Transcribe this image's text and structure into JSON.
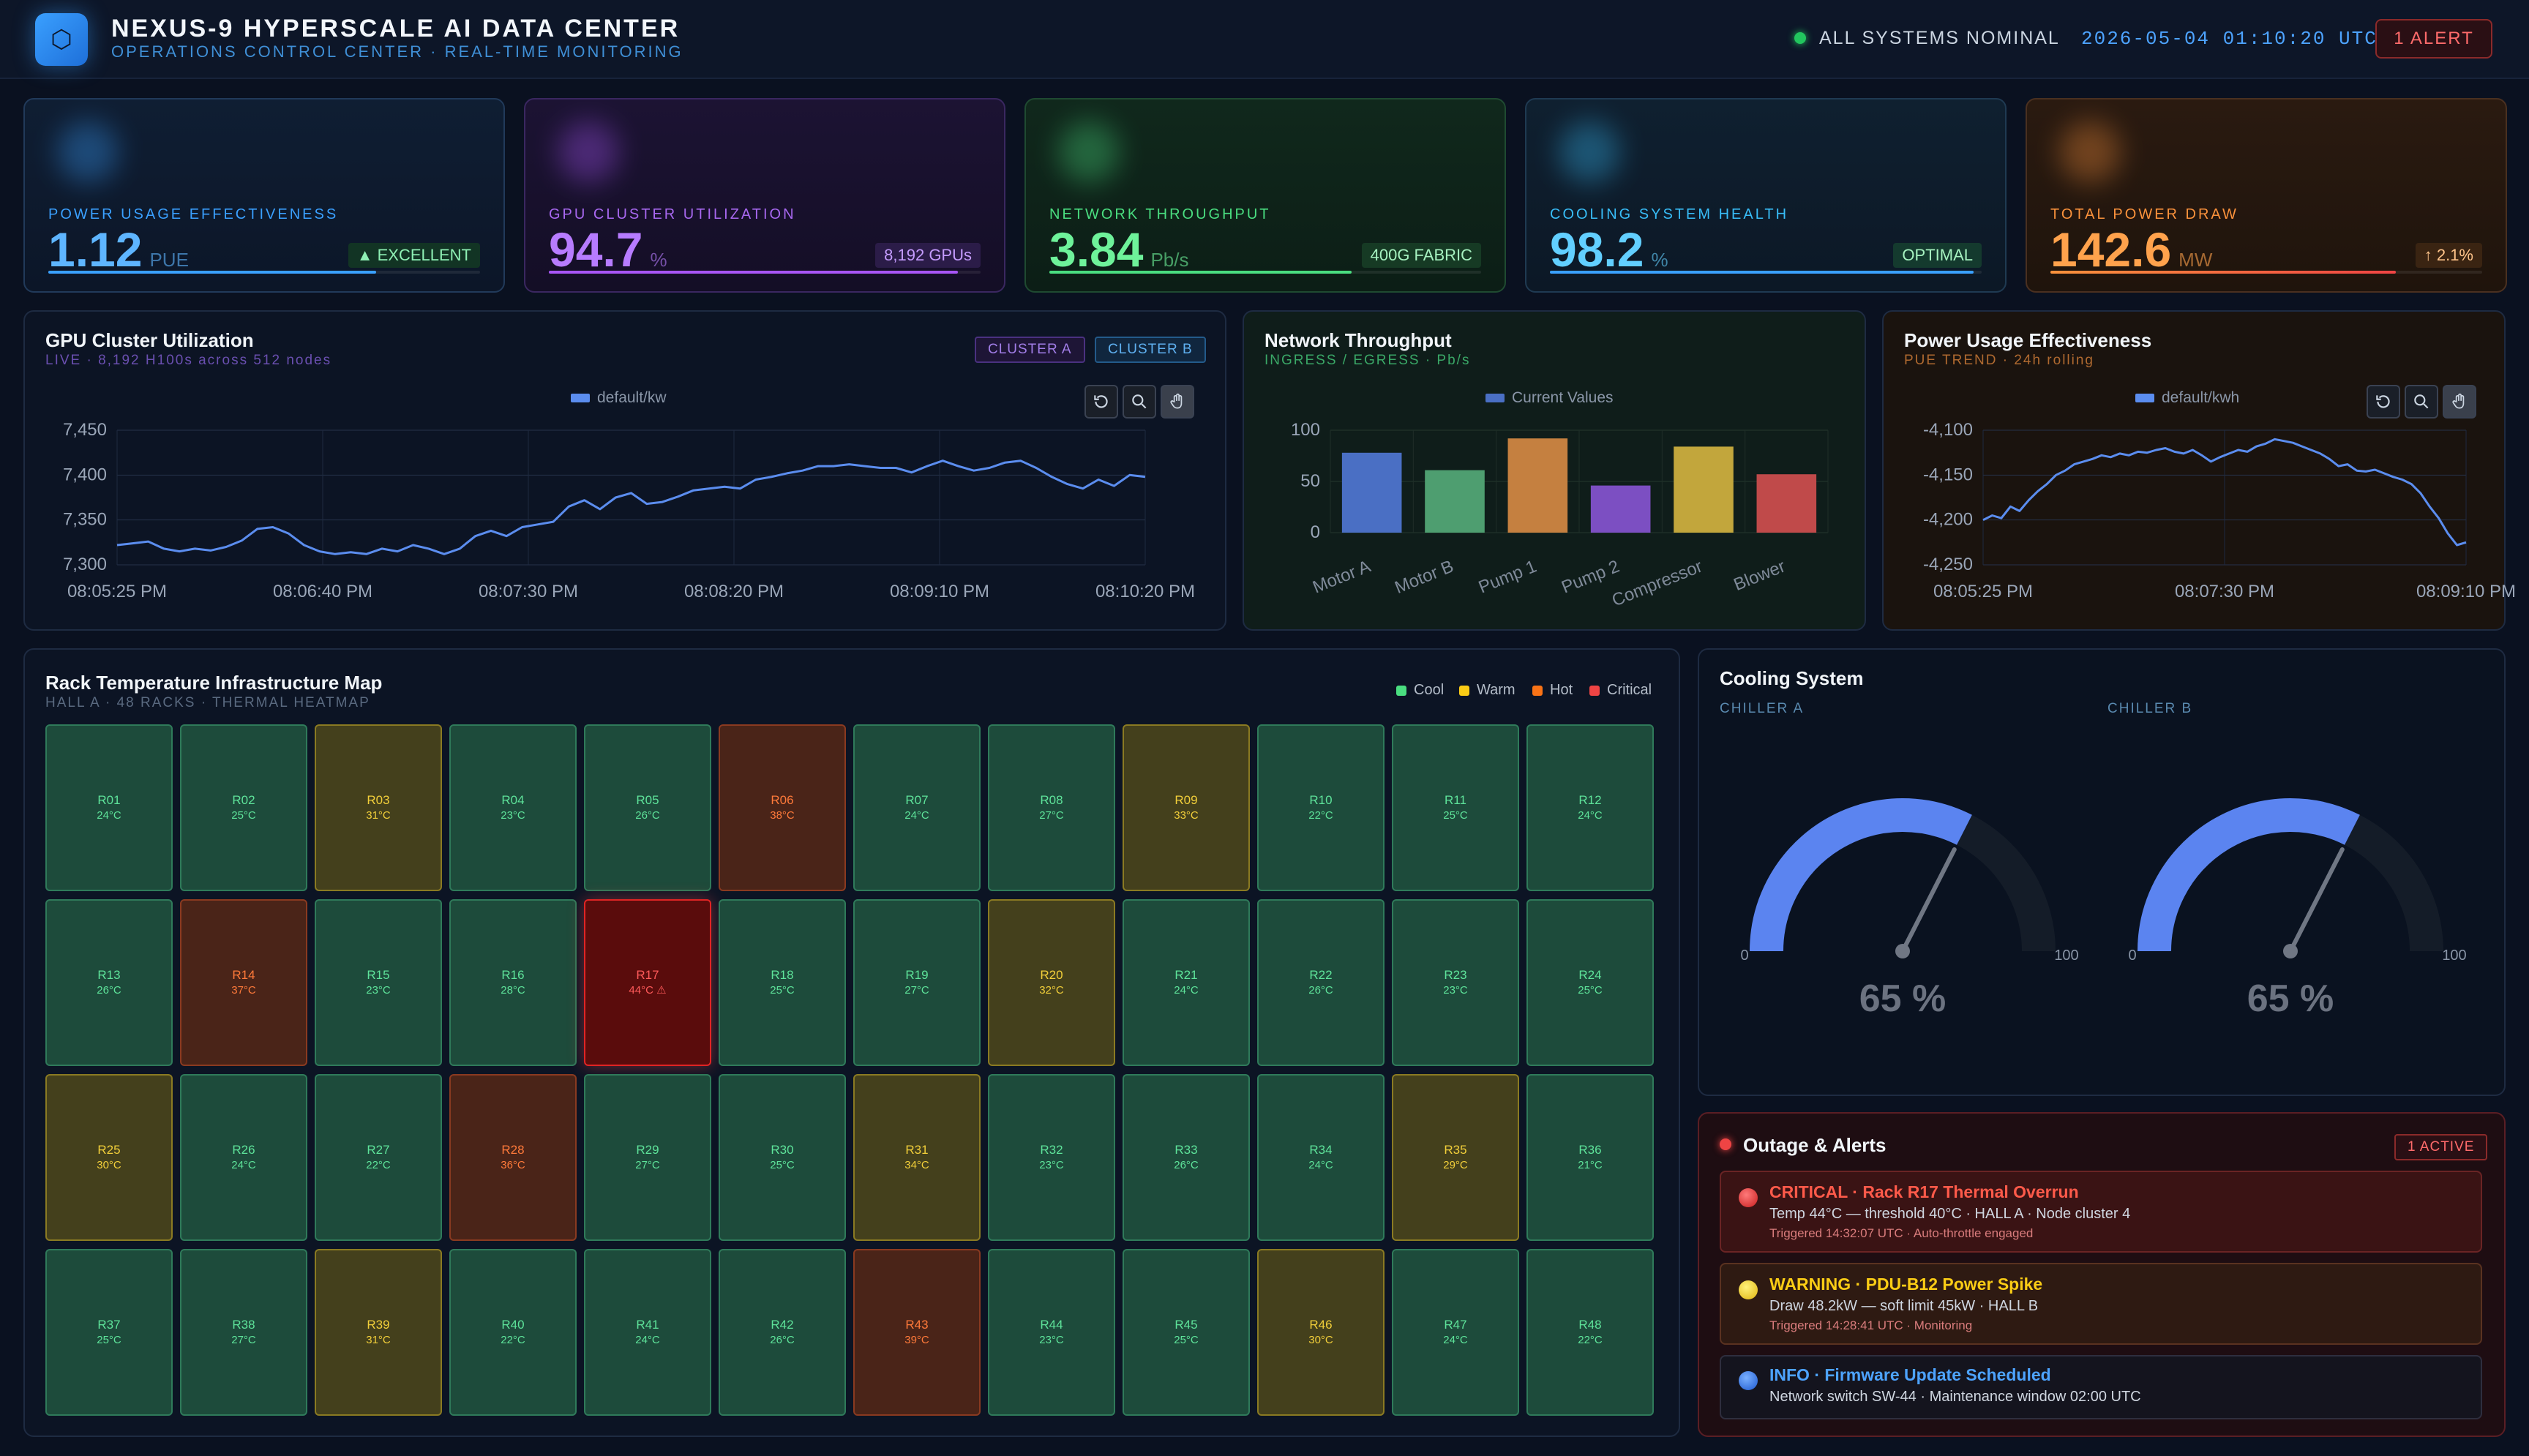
{
  "header": {
    "title": "NEXUS-9 HYPERSCALE AI DATA CENTER",
    "subtitle": "OPERATIONS CONTROL CENTER · REAL-TIME MONITORING",
    "status": "ALL SYSTEMS NOMINAL",
    "datetime": "2026-05-04 01:10:20 UTC",
    "alert_badge": "1 ALERT",
    "logo_glyph": "⬡"
  },
  "kpis": {
    "pue": {
      "label": "POWER USAGE EFFECTIVENESS",
      "value": "1.12",
      "unit": "PUE",
      "tag": "▲ EXCELLENT",
      "fill": 0.76,
      "color": "#3aa0ff"
    },
    "gpu": {
      "label": "GPU CLUSTER UTILIZATION",
      "value": "94.7",
      "unit": "%",
      "tag": "8,192 GPUs",
      "fill": 0.947,
      "color": "#a855f7"
    },
    "network": {
      "label": "NETWORK THROUGHPUT",
      "value": "3.84",
      "unit": "Pb/s",
      "tag": "400G FABRIC",
      "fill": 0.7,
      "color": "#4ade80"
    },
    "cooling": {
      "label": "COOLING SYSTEM HEALTH",
      "value": "98.2",
      "unit": "%",
      "tag": "OPTIMAL",
      "fill": 0.982,
      "color": "#38bdf8"
    },
    "power": {
      "label": "TOTAL POWER DRAW",
      "value": "142.6",
      "unit": "MW",
      "tag": "↑ 2.1%",
      "fill": 0.8,
      "color": "#fb923c"
    }
  },
  "gpu_panel": {
    "title": "GPU Cluster Utilization",
    "subtitle": "LIVE · 8,192 H100s across 512 nodes",
    "chip_a": "CLUSTER A",
    "chip_b": "CLUSTER B",
    "tools": [
      "reset-icon",
      "zoom-icon",
      "pan-icon"
    ]
  },
  "network_panel": {
    "title": "Network Throughput",
    "subtitle": "INGRESS / EGRESS · Pb/s"
  },
  "pue_panel": {
    "title": "Power Usage Effectiveness",
    "subtitle": "PUE TREND · 24h rolling",
    "tools": [
      "reset-icon",
      "zoom-icon",
      "pan-icon"
    ]
  },
  "chart_data": [
    {
      "type": "line",
      "legend": "default/kw",
      "ylim": [
        7300,
        7450
      ],
      "yticks": [
        "7,450",
        "7,400",
        "7,350",
        "7,300"
      ],
      "xticks": [
        "08:05:25 PM",
        "08:06:40 PM",
        "08:07:30 PM",
        "08:08:20 PM",
        "08:09:10 PM",
        "08:10:20 PM"
      ],
      "color": "#5b8def",
      "values": [
        7322,
        7324,
        7326,
        7318,
        7315,
        7318,
        7316,
        7320,
        7327,
        7340,
        7342,
        7335,
        7322,
        7315,
        7312,
        7314,
        7312,
        7318,
        7315,
        7322,
        7318,
        7312,
        7318,
        7332,
        7338,
        7332,
        7342,
        7345,
        7348,
        7365,
        7372,
        7362,
        7375,
        7380,
        7368,
        7370,
        7376,
        7383,
        7385,
        7387,
        7385,
        7395,
        7398,
        7402,
        7405,
        7410,
        7410,
        7412,
        7410,
        7408,
        7408,
        7403,
        7410,
        7416,
        7410,
        7405,
        7408,
        7414,
        7416,
        7408,
        7398,
        7390,
        7385,
        7395,
        7388,
        7400,
        7398
      ]
    },
    {
      "type": "bar",
      "legend": "Current Values",
      "categories": [
        "Motor A",
        "Motor B",
        "Pump 1",
        "Pump 2",
        "Compressor",
        "Blower"
      ],
      "values": [
        78,
        61,
        92,
        46,
        84,
        57
      ],
      "colors": [
        "#4a6fc4",
        "#4e9e70",
        "#c58040",
        "#7c4fc2",
        "#c2a63c",
        "#c04a4a"
      ],
      "ylim": [
        0,
        100
      ],
      "yticks": [
        "100",
        "50",
        "0"
      ]
    },
    {
      "type": "line",
      "legend": "default/kwh",
      "ylim": [
        -4250,
        -4100
      ],
      "yticks": [
        "-4,100",
        "-4,150",
        "-4,200",
        "-4,250"
      ],
      "xticks": [
        "08:05:25 PM",
        "08:07:30 PM",
        "08:09:10 PM"
      ],
      "color": "#5b8def",
      "values": [
        -4200,
        -4195,
        -4198,
        -4185,
        -4190,
        -4178,
        -4168,
        -4160,
        -4150,
        -4145,
        -4138,
        -4135,
        -4132,
        -4128,
        -4130,
        -4126,
        -4128,
        -4124,
        -4125,
        -4122,
        -4120,
        -4124,
        -4126,
        -4122,
        -4128,
        -4135,
        -4130,
        -4126,
        -4122,
        -4124,
        -4118,
        -4115,
        -4110,
        -4112,
        -4114,
        -4118,
        -4122,
        -4126,
        -4132,
        -4140,
        -4138,
        -4145,
        -4146,
        -4144,
        -4148,
        -4152,
        -4155,
        -4160,
        -4170,
        -4185,
        -4198,
        -4215,
        -4228,
        -4225
      ]
    }
  ],
  "rack_panel": {
    "title": "Rack Temperature Infrastructure Map",
    "subtitle": "HALL A · 48 RACKS · THERMAL HEATMAP",
    "legend": {
      "cool": "Cool",
      "warm": "Warm",
      "hot": "Hot",
      "critical": "Critical"
    },
    "racks": [
      {
        "id": "R01",
        "temp": "24°C",
        "state": "cool"
      },
      {
        "id": "R02",
        "temp": "25°C",
        "state": "cool"
      },
      {
        "id": "R03",
        "temp": "31°C",
        "state": "warm"
      },
      {
        "id": "R04",
        "temp": "23°C",
        "state": "cool"
      },
      {
        "id": "R05",
        "temp": "26°C",
        "state": "cool"
      },
      {
        "id": "R06",
        "temp": "38°C",
        "state": "hot"
      },
      {
        "id": "R07",
        "temp": "24°C",
        "state": "cool"
      },
      {
        "id": "R08",
        "temp": "27°C",
        "state": "cool"
      },
      {
        "id": "R09",
        "temp": "33°C",
        "state": "warm"
      },
      {
        "id": "R10",
        "temp": "22°C",
        "state": "cool"
      },
      {
        "id": "R11",
        "temp": "25°C",
        "state": "cool"
      },
      {
        "id": "R12",
        "temp": "24°C",
        "state": "cool"
      },
      {
        "id": "R13",
        "temp": "26°C",
        "state": "cool"
      },
      {
        "id": "R14",
        "temp": "37°C",
        "state": "hot"
      },
      {
        "id": "R15",
        "temp": "23°C",
        "state": "cool"
      },
      {
        "id": "R16",
        "temp": "28°C",
        "state": "cool"
      },
      {
        "id": "R17",
        "temp": "44°C ⚠",
        "state": "crit"
      },
      {
        "id": "R18",
        "temp": "25°C",
        "state": "cool"
      },
      {
        "id": "R19",
        "temp": "27°C",
        "state": "cool"
      },
      {
        "id": "R20",
        "temp": "32°C",
        "state": "warm"
      },
      {
        "id": "R21",
        "temp": "24°C",
        "state": "cool"
      },
      {
        "id": "R22",
        "temp": "26°C",
        "state": "cool"
      },
      {
        "id": "R23",
        "temp": "23°C",
        "state": "cool"
      },
      {
        "id": "R24",
        "temp": "25°C",
        "state": "cool"
      },
      {
        "id": "R25",
        "temp": "30°C",
        "state": "warm"
      },
      {
        "id": "R26",
        "temp": "24°C",
        "state": "cool"
      },
      {
        "id": "R27",
        "temp": "22°C",
        "state": "cool"
      },
      {
        "id": "R28",
        "temp": "36°C",
        "state": "hot"
      },
      {
        "id": "R29",
        "temp": "27°C",
        "state": "cool"
      },
      {
        "id": "R30",
        "temp": "25°C",
        "state": "cool"
      },
      {
        "id": "R31",
        "temp": "34°C",
        "state": "warm"
      },
      {
        "id": "R32",
        "temp": "23°C",
        "state": "cool"
      },
      {
        "id": "R33",
        "temp": "26°C",
        "state": "cool"
      },
      {
        "id": "R34",
        "temp": "24°C",
        "state": "cool"
      },
      {
        "id": "R35",
        "temp": "29°C",
        "state": "warm"
      },
      {
        "id": "R36",
        "temp": "21°C",
        "state": "cool"
      },
      {
        "id": "R37",
        "temp": "25°C",
        "state": "cool"
      },
      {
        "id": "R38",
        "temp": "27°C",
        "state": "cool"
      },
      {
        "id": "R39",
        "temp": "31°C",
        "state": "warm"
      },
      {
        "id": "R40",
        "temp": "22°C",
        "state": "cool"
      },
      {
        "id": "R41",
        "temp": "24°C",
        "state": "cool"
      },
      {
        "id": "R42",
        "temp": "26°C",
        "state": "cool"
      },
      {
        "id": "R43",
        "temp": "39°C",
        "state": "hot"
      },
      {
        "id": "R44",
        "temp": "23°C",
        "state": "cool"
      },
      {
        "id": "R45",
        "temp": "25°C",
        "state": "cool"
      },
      {
        "id": "R46",
        "temp": "30°C",
        "state": "warm"
      },
      {
        "id": "R47",
        "temp": "24°C",
        "state": "cool"
      },
      {
        "id": "R48",
        "temp": "22°C",
        "state": "cool"
      }
    ]
  },
  "cooling_panel": {
    "title": "Cooling System",
    "chillers": [
      {
        "label": "CHILLER A",
        "value": 65,
        "display": "65 %",
        "min": "0",
        "max": "100"
      },
      {
        "label": "CHILLER B",
        "value": 65,
        "display": "65 %",
        "min": "0",
        "max": "100"
      }
    ]
  },
  "alerts_panel": {
    "title": "Outage & Alerts",
    "badge": "1 ACTIVE",
    "alerts": [
      {
        "title": "CRITICAL · Rack R17 Thermal Overrun",
        "detail": "Temp 44°C — threshold 40°C · HALL A · Node cluster 4",
        "meta": "Triggered 14:32:07 UTC · Auto-throttle engaged"
      },
      {
        "title": "WARNING · PDU-B12 Power Spike",
        "detail": "Draw 48.2kW — soft limit 45kW · HALL B",
        "meta": "Triggered 14:28:41 UTC · Monitoring"
      },
      {
        "title": "INFO · Firmware Update Scheduled",
        "detail": "Network switch SW-44 · Maintenance window 02:00 UTC"
      }
    ]
  },
  "colors": {
    "accent": "#3aa0ff",
    "ok": "#22c55e",
    "critical": "#ef4444",
    "warning": "#facc15",
    "info": "#3b82f6"
  }
}
